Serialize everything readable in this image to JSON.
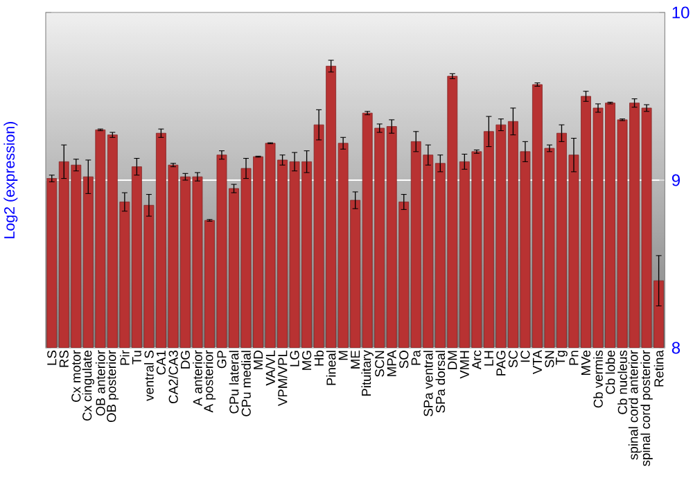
{
  "chart_data": {
    "type": "bar",
    "ylabel": "Log2 (expression)",
    "categories": [
      "LS",
      "RS",
      "Cx motor",
      "Cx cingulate",
      "OB anterior",
      "OB posterior",
      "Pir",
      "Tu",
      "ventral S",
      "CA1",
      "CA2/CA3",
      "DG",
      "A anterior",
      "A posterior",
      "GP",
      "CPu lateral",
      "CPu medial",
      "MD",
      "VA/VL",
      "VPM/VPL",
      "LG",
      "MG",
      "Hb",
      "Pineal",
      "M",
      "ME",
      "Pituitary",
      "SCN",
      "MPA",
      "SO",
      "Pa",
      "SPa ventral",
      "SPa dorsal",
      "DM",
      "VMH",
      "Arc",
      "LH",
      "PAG",
      "SC",
      "IC",
      "VTA",
      "SN",
      "Tg",
      "Pn",
      "MVe",
      "Cb vermis",
      "Cb lobe",
      "Cb nucleus",
      "spinal cord anterior",
      "spinal cord posterior",
      "Retina"
    ],
    "values": [
      9.01,
      9.11,
      9.09,
      9.02,
      9.3,
      9.27,
      8.87,
      9.08,
      8.85,
      9.28,
      9.09,
      9.02,
      9.02,
      8.76,
      9.15,
      8.95,
      9.07,
      9.14,
      9.22,
      9.12,
      9.11,
      9.11,
      9.33,
      9.68,
      9.22,
      8.88,
      9.4,
      9.31,
      9.32,
      8.87,
      9.23,
      9.15,
      9.1,
      9.62,
      9.11,
      9.17,
      9.29,
      9.33,
      9.35,
      9.17,
      9.57,
      9.19,
      9.28,
      9.15,
      9.5,
      9.43,
      9.46,
      9.36,
      9.46,
      9.43,
      8.4
    ],
    "errors": [
      0.02,
      0.1,
      0.035,
      0.1,
      0.005,
      0.015,
      0.055,
      0.05,
      0.065,
      0.025,
      0.01,
      0.02,
      0.025,
      0.005,
      0.025,
      0.025,
      0.06,
      0.003,
      0.003,
      0.03,
      0.055,
      0.065,
      0.09,
      0.035,
      0.035,
      0.05,
      0.01,
      0.025,
      0.04,
      0.045,
      0.06,
      0.06,
      0.05,
      0.015,
      0.045,
      0.01,
      0.09,
      0.035,
      0.08,
      0.06,
      0.01,
      0.02,
      0.05,
      0.1,
      0.03,
      0.025,
      0.005,
      0.005,
      0.025,
      0.02,
      0.15
    ],
    "color": "#b83232",
    "ylim": [
      8,
      10
    ],
    "yticks": [
      8,
      9,
      10
    ],
    "grid": "y"
  }
}
